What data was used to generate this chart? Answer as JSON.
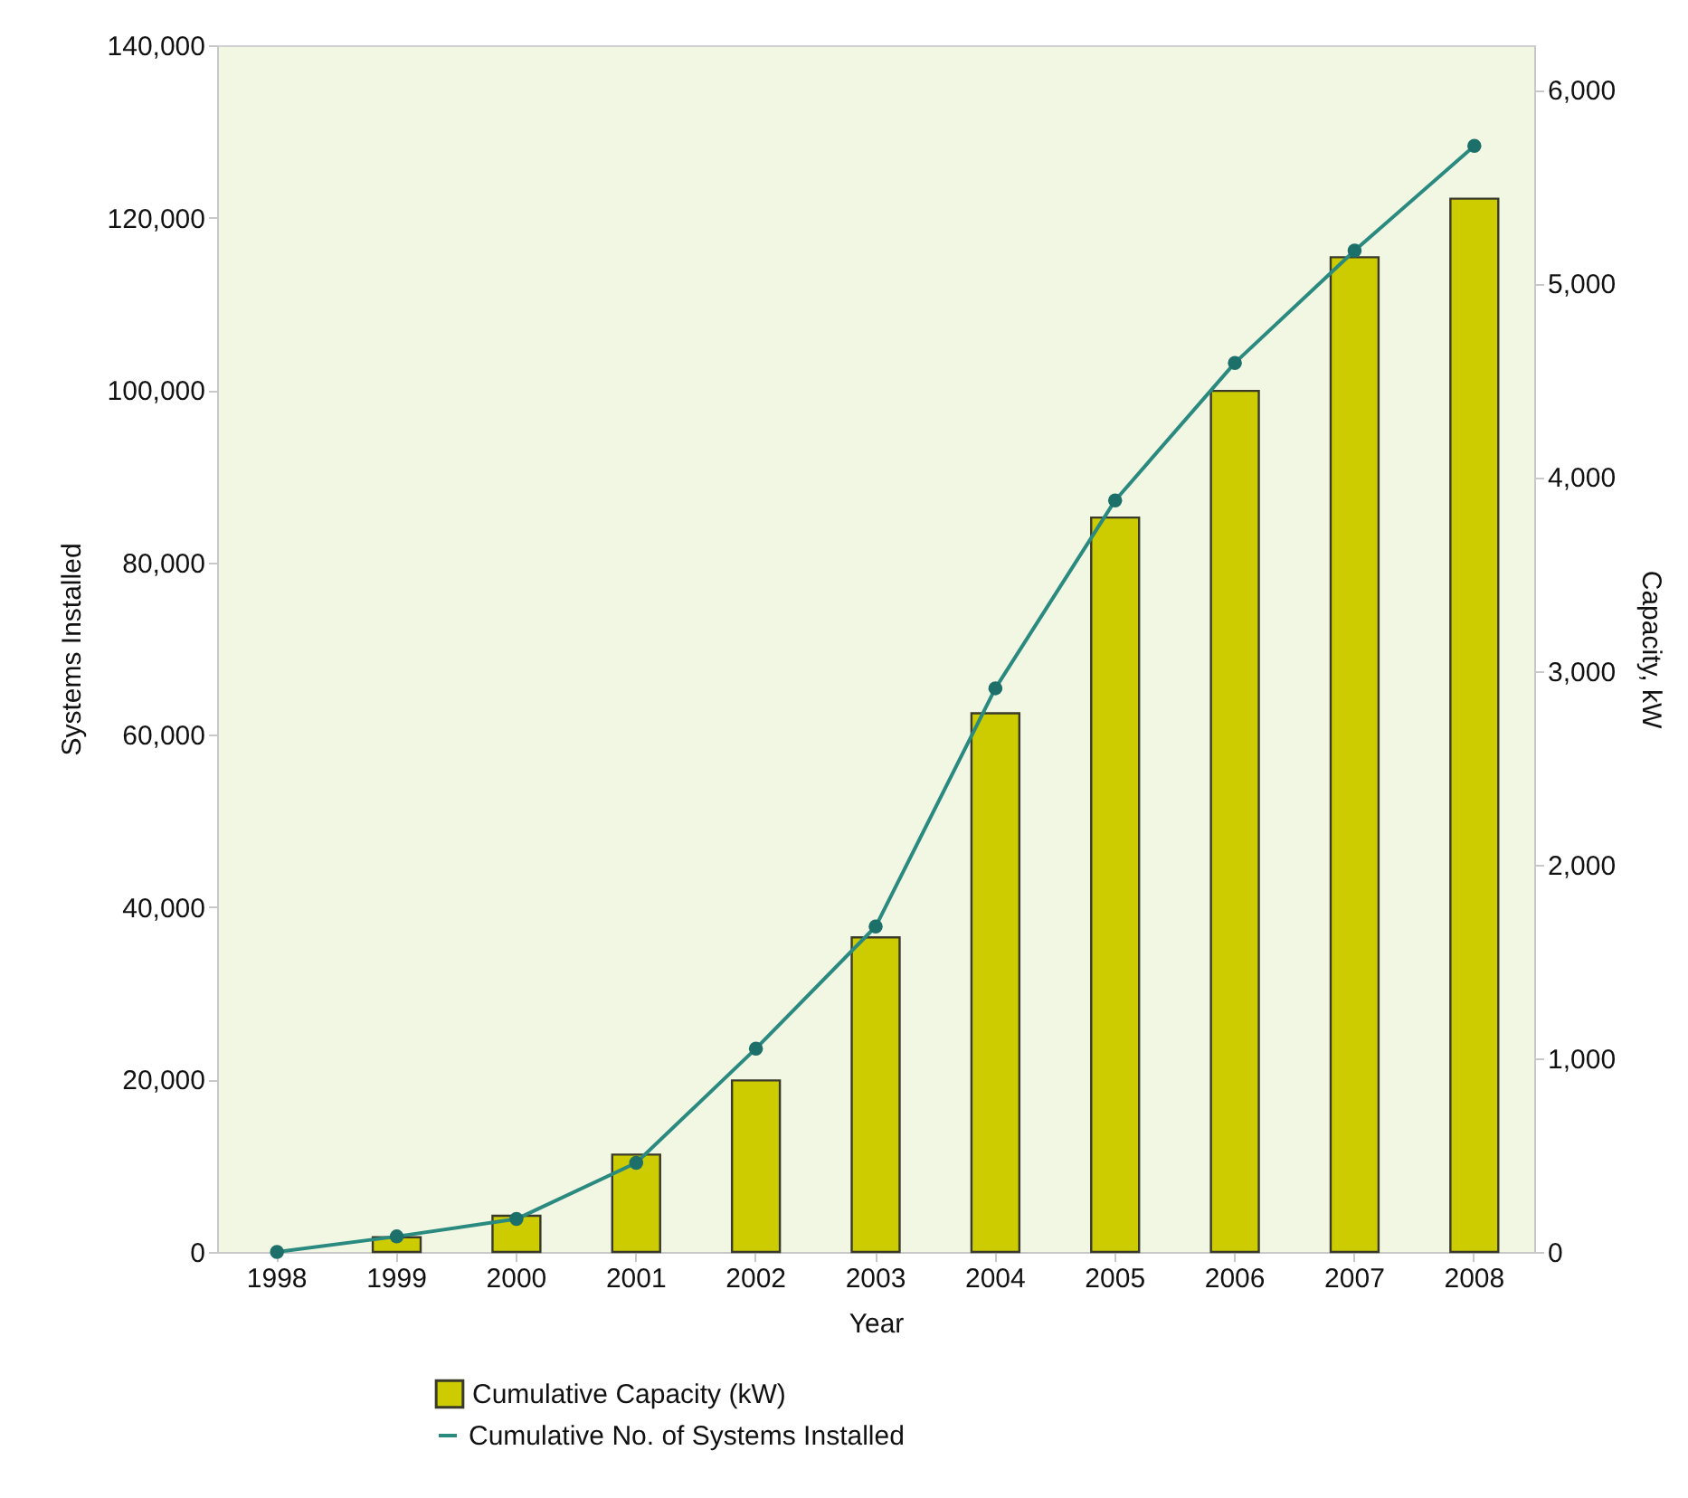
{
  "chart_data": {
    "type": "bar",
    "categories": [
      "1998",
      "1999",
      "2000",
      "2001",
      "2002",
      "2003",
      "2004",
      "2005",
      "2006",
      "2007",
      "2008"
    ],
    "series": [
      {
        "name": "Cumulative Capacity (kW)",
        "color": "#cccc00",
        "values": [
          null,
          1700,
          4200,
          11300,
          19900,
          36500,
          62500,
          85200,
          99900,
          115400,
          122200
        ]
      },
      {
        "name": "Cumulative No. of Systems Installed",
        "type": "line",
        "axis": "y2",
        "marker": "circle",
        "color": "#2a8a80",
        "values": [
          0,
          80,
          170,
          460,
          1050,
          1680,
          2910,
          3880,
          4590,
          5170,
          5710
        ]
      }
    ],
    "xlabel": "Year",
    "ylabel": "Systems Installed",
    "y2label": "Capacity, kW",
    "ylim": [
      0,
      140000
    ],
    "yticks": [
      0,
      {
        "value": 20000,
        "label": "20,000"
      },
      {
        "value": 40000,
        "label": "40,000"
      },
      {
        "value": 60000,
        "label": "60,000"
      },
      {
        "value": 80000,
        "label": "80,000"
      },
      {
        "value": 100000,
        "label": "100,000"
      },
      {
        "value": 120000,
        "label": "120,000"
      },
      {
        "value": 140000,
        "label": "140,000"
      }
    ],
    "y2lim": [
      0,
      6230
    ],
    "y2ticks": [
      0,
      {
        "value": 1000,
        "label": "1,000"
      },
      {
        "value": 2000,
        "label": "2,000"
      },
      {
        "value": 3000,
        "label": "3,000"
      },
      {
        "value": 4000,
        "label": "4,000"
      },
      {
        "value": 5000,
        "label": "5,000"
      },
      {
        "value": 6000,
        "label": "6,000"
      }
    ],
    "legend": "bottom"
  }
}
